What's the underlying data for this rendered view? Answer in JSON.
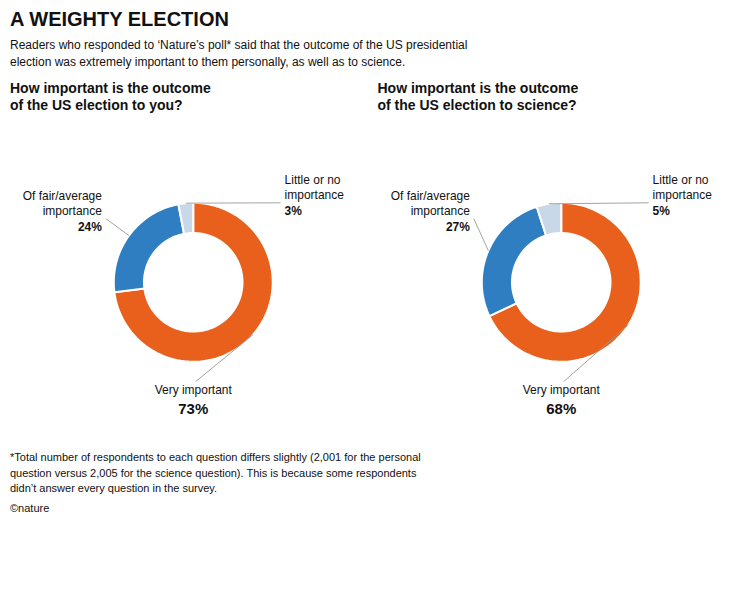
{
  "title": "A WEIGHTY ELECTION",
  "subtitle": "Readers who responded to ‘Nature’s poll* said that the outcome of the US presidential\nelection was extremely important to them personally, as well as to science.",
  "annotations": [
    "*Total number of respondents to each question differs slightly (2,001 for the personal\nquestion versus 2,005 for the science question). This is because some respondents\ndidn’t answer every question in the survey.",
    "©nature"
  ],
  "chart_data": [
    {
      "type": "pie",
      "title": "How important is the outcome\nof the US election to you?",
      "categories": [
        "Very important",
        "Of fair/average\nimportance",
        "Little or no\nimportance"
      ],
      "values": [
        73,
        24,
        3
      ],
      "value_labels": [
        "73%",
        "24%",
        "3%"
      ],
      "colors": [
        "#E8601C",
        "#2E7EC1",
        "#C9D8E8"
      ],
      "data_labels": true
    },
    {
      "type": "pie",
      "title": "How important is the outcome\nof the US election to science?",
      "categories": [
        "Very important",
        "Of fair/average\nimportance",
        "Little or no\nimportance"
      ],
      "values": [
        68,
        27,
        5
      ],
      "value_labels": [
        "68%",
        "27%",
        "5%"
      ],
      "colors": [
        "#E8601C",
        "#2E7EC1",
        "#C9D8E8"
      ],
      "data_labels": true
    }
  ]
}
